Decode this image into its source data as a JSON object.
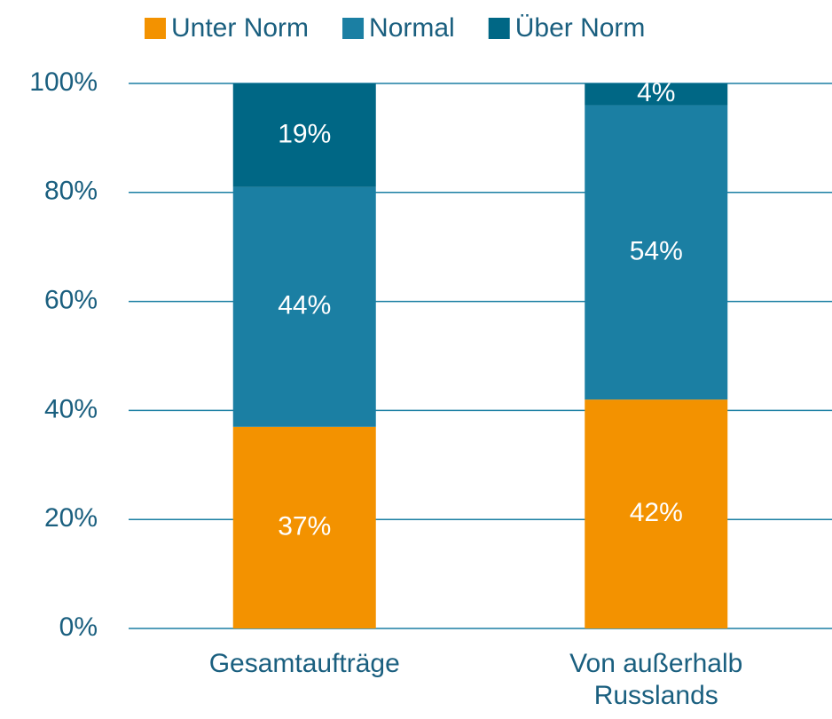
{
  "chart_data": {
    "type": "stacked_bar",
    "categories": [
      "Gesamtaufträge",
      "Von außerhalb Russlands"
    ],
    "series": [
      {
        "name": "Unter Norm",
        "color": "#f39200",
        "values": [
          37,
          42
        ],
        "value_labels": [
          "37%",
          "42%"
        ]
      },
      {
        "name": "Normal",
        "color": "#1b7fa3",
        "values": [
          44,
          54
        ],
        "value_labels": [
          "44%",
          "54%"
        ]
      },
      {
        "name": "Über Norm",
        "color": "#006785",
        "values": [
          19,
          4
        ],
        "value_labels": [
          "19%",
          "4%"
        ]
      }
    ],
    "ylim": [
      0,
      100
    ],
    "yticks": [
      {
        "value": 0,
        "label": "0%"
      },
      {
        "value": 20,
        "label": "20%"
      },
      {
        "value": 40,
        "label": "40%"
      },
      {
        "value": 60,
        "label": "60%"
      },
      {
        "value": 80,
        "label": "80%"
      },
      {
        "value": 100,
        "label": "100%"
      }
    ],
    "grid": true,
    "legend": "top"
  }
}
